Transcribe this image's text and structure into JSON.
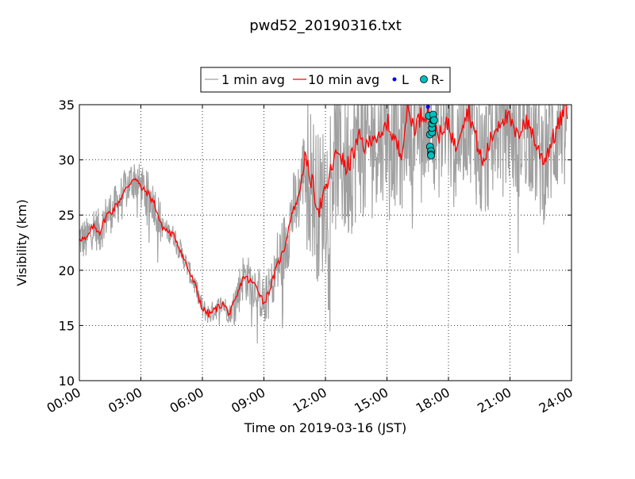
{
  "chart_data": {
    "type": "line",
    "title": "pwd52_20190316.txt",
    "xlabel": "Time on 2019-03-16 (JST)",
    "ylabel": "Visibility (km)",
    "xlim": [
      "00:00",
      "24:00"
    ],
    "ylim": [
      10,
      35
    ],
    "grid": true,
    "legend_position": "top",
    "x_ticks": [
      "00:00",
      "03:00",
      "06:00",
      "09:00",
      "12:00",
      "15:00",
      "18:00",
      "21:00",
      "24:00"
    ],
    "y_ticks": [
      "10",
      "15",
      "20",
      "25",
      "30",
      "35"
    ],
    "colors": {
      "raw": "#a0a0a0",
      "avg": "#ff0000",
      "L": "#0000ff",
      "R": "#00bfbf"
    },
    "legend": [
      {
        "label": "1 min avg",
        "kind": "line",
        "color": "#a0a0a0"
      },
      {
        "label": "10 min avg",
        "kind": "line",
        "color": "#ff0000"
      },
      {
        "label": "L",
        "kind": "dot",
        "color": "#0000ff"
      },
      {
        "label": "R-",
        "kind": "circle",
        "color": "#00bfbf"
      }
    ],
    "series": [
      {
        "name": "10 min avg",
        "x_hours": [
          0.0,
          0.33,
          0.67,
          1.0,
          1.33,
          1.67,
          2.0,
          2.33,
          2.67,
          3.0,
          3.33,
          3.67,
          4.0,
          4.33,
          4.67,
          5.0,
          5.33,
          5.67,
          6.0,
          6.33,
          6.67,
          7.0,
          7.33,
          7.67,
          8.0,
          8.33,
          8.67,
          9.0,
          9.33,
          9.67,
          10.0,
          10.33,
          10.67,
          11.0,
          11.33,
          11.67,
          12.0,
          12.33,
          12.67,
          13.0,
          13.33,
          13.67,
          14.0,
          14.33,
          14.67,
          15.0,
          15.33,
          15.67,
          16.0,
          16.33,
          16.67,
          17.0,
          17.33,
          17.67,
          18.0,
          18.33,
          18.67,
          19.0,
          19.33,
          19.67,
          20.0,
          20.33,
          20.67,
          21.0,
          21.33,
          21.67,
          22.0,
          22.33,
          22.67,
          23.0,
          23.33,
          23.67
        ],
        "values": [
          23.0,
          22.7,
          24.0,
          23.5,
          25.0,
          25.5,
          26.5,
          27.5,
          28.5,
          27.5,
          27.0,
          26.0,
          24.0,
          23.5,
          23.0,
          21.5,
          20.0,
          18.5,
          16.5,
          16.0,
          16.5,
          17.0,
          16.0,
          17.5,
          19.5,
          19.0,
          18.5,
          17.0,
          18.5,
          20.5,
          22.0,
          25.0,
          26.5,
          30.0,
          28.0,
          25.5,
          27.0,
          29.5,
          31.0,
          29.0,
          30.5,
          32.0,
          31.0,
          32.5,
          31.5,
          33.5,
          32.0,
          30.5,
          34.5,
          33.0,
          34.0,
          34.5,
          33.0,
          32.0,
          33.5,
          31.0,
          33.5,
          34.5,
          32.0,
          29.5,
          31.5,
          33.0,
          34.0,
          33.5,
          32.0,
          33.5,
          33.0,
          31.0,
          30.0,
          31.5,
          33.0,
          34.5
        ]
      },
      {
        "name": "R-",
        "x_hours": [
          17.05,
          17.1,
          17.1,
          17.15,
          17.15,
          17.15,
          17.2,
          17.2,
          17.2,
          17.25,
          17.25,
          17.3
        ],
        "values": [
          34.0,
          32.3,
          31.2,
          30.8,
          30.5,
          30.4,
          32.5,
          32.9,
          33.3,
          33.6,
          34.1,
          33.6
        ]
      },
      {
        "name": "L",
        "x_hours": [
          17.0
        ],
        "values": [
          34.8
        ]
      }
    ]
  }
}
